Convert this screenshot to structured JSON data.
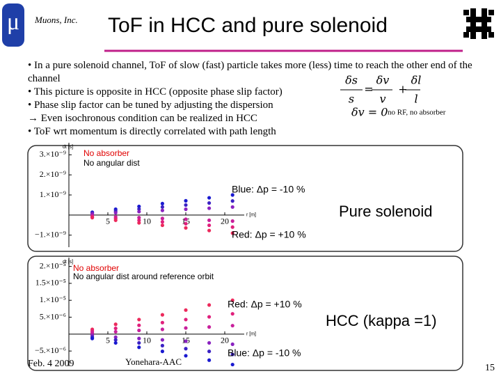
{
  "header": {
    "logo": "μ",
    "company": "Muons, Inc.",
    "title": "ToF in HCC and pure solenoid"
  },
  "bullets": [
    "• In a pure solenoid channel, ToF of slow (fast) particle takes more (less) time to reach the other end of the channel",
    "• This picture is opposite in HCC (opposite phase slip factor)",
    "• Phase slip factor can be tuned by adjusting the dispersion",
    "→ Even isochronous condition can be realized in HCC",
    "• ToF wrt momentum is directly correlated with path length"
  ],
  "equation": {
    "parts": [
      "δs",
      "s",
      "=",
      "δv",
      "v",
      "+",
      "δl",
      "l"
    ]
  },
  "condition": "δv = 0",
  "condition_note": "no RF, no absorber",
  "chart_data": [
    {
      "type": "scatter",
      "x_label": "r [m]",
      "y_label": "dt [s]",
      "x": [
        3,
        6,
        9,
        12,
        15,
        18,
        21
      ],
      "xlim": [
        0,
        22.5
      ],
      "xticks": [
        5,
        10,
        15,
        20
      ],
      "ylim": [
        -1.6e-09,
        3.6e-09
      ],
      "yticks": [
        {
          "value": -1e-09,
          "label": "−1.×10⁻⁹"
        },
        {
          "value": 1e-09,
          "label": "1.×10⁻⁹"
        },
        {
          "value": 2e-09,
          "label": "2.×10⁻⁹"
        },
        {
          "value": 3e-09,
          "label": "3.×10⁻⁹"
        }
      ],
      "series": [
        {
          "color": "#1a1ad0",
          "values": [
            1.4e-10,
            2.9e-10,
            4.3e-10,
            5.7e-10,
            7.1e-10,
            8.6e-10,
            1e-09
          ]
        },
        {
          "color": "#3b22c4",
          "values": [
            1e-10,
            2e-10,
            3e-10,
            4e-10,
            5e-10,
            6e-10,
            7e-10
          ]
        },
        {
          "color": "#8a22c0",
          "values": [
            6e-11,
            1.1e-10,
            1.7e-10,
            2.3e-10,
            2.9e-10,
            3.4e-10,
            4e-10
          ]
        },
        {
          "color": "#c8209c",
          "values": [
            -4e-11,
            -9e-11,
            -1.3e-10,
            -1.7e-10,
            -2.1e-10,
            -2.6e-10,
            -3e-10
          ]
        },
        {
          "color": "#e0207c",
          "values": [
            -9e-11,
            -1.7e-10,
            -2.6e-10,
            -3.4e-10,
            -4.3e-10,
            -5.1e-10,
            -6e-10
          ]
        },
        {
          "color": "#ec2a5c",
          "values": [
            -1.3e-10,
            -2.6e-10,
            -3.9e-10,
            -5.1e-10,
            -6.4e-10,
            -7.7e-10,
            -9e-10
          ]
        }
      ],
      "annotations": [
        {
          "text": "No absorber",
          "color": "#e00000"
        },
        {
          "text": "No angular dist",
          "color": "#000000"
        },
        {
          "text": "Blue: Δp = -10 %",
          "color": "#000000"
        },
        {
          "text": "Pure solenoid",
          "color": "#000000"
        },
        {
          "text": "Red: Δp = +10 %",
          "color": "#000000"
        }
      ]
    },
    {
      "type": "scatter",
      "x_label": "r [m]",
      "y_label": "dt [s]",
      "x": [
        3,
        6,
        9,
        12,
        15,
        18,
        21
      ],
      "xlim": [
        0,
        22.5
      ],
      "xticks": [
        5,
        10,
        15,
        20
      ],
      "ylim": [
        -9.5e-06,
        2.26e-05
      ],
      "yticks": [
        {
          "value": -5e-06,
          "label": "−5.×10⁻⁶"
        },
        {
          "value": 5e-06,
          "label": "5.×10⁻⁶"
        },
        {
          "value": 1e-05,
          "label": "1.×10⁻⁵"
        },
        {
          "value": 1.5e-05,
          "label": "1.5×10⁻⁵"
        },
        {
          "value": 2e-05,
          "label": "2.×10⁻⁵"
        }
      ],
      "series": [
        {
          "color": "#ec2a5c",
          "values": [
            1.4e-06,
            2.9e-06,
            4.3e-06,
            5.7e-06,
            7.1e-06,
            8.6e-06,
            1e-05
          ]
        },
        {
          "color": "#e0207c",
          "values": [
            9e-07,
            1.7e-06,
            2.6e-06,
            3.4e-06,
            4.3e-06,
            5.1e-06,
            6e-06
          ]
        },
        {
          "color": "#c8209c",
          "values": [
            4e-07,
            7e-07,
            1.1e-06,
            1.4e-06,
            1.8e-06,
            2.1e-06,
            2.5e-06
          ]
        },
        {
          "color": "#8a22c0",
          "values": [
            -4e-07,
            -9e-07,
            -1.3e-06,
            -1.7e-06,
            -2.1e-06,
            -2.6e-06,
            -3e-06
          ]
        },
        {
          "color": "#3b22c4",
          "values": [
            -9e-07,
            -1.7e-06,
            -2.6e-06,
            -3.4e-06,
            -4.3e-06,
            -5.1e-06,
            -6e-06
          ]
        },
        {
          "color": "#1a1ad0",
          "values": [
            -1.3e-06,
            -2.6e-06,
            -3.9e-06,
            -5.1e-06,
            -6.4e-06,
            -7.7e-06,
            -9e-06
          ]
        }
      ],
      "annotations": [
        {
          "text": "No absorber",
          "color": "#e00000"
        },
        {
          "text": "No angular dist around reference orbit",
          "color": "#000000"
        },
        {
          "text": "Red: Δp = +10 %",
          "color": "#000000"
        },
        {
          "text": "HCC (kappa =1)",
          "color": "#000000"
        },
        {
          "text": "Blue: Δp = -10 %",
          "color": "#000000"
        }
      ]
    }
  ],
  "footer": {
    "date": "Feb. 4 2009",
    "author": "Yonehara-AAC",
    "page": "15"
  }
}
